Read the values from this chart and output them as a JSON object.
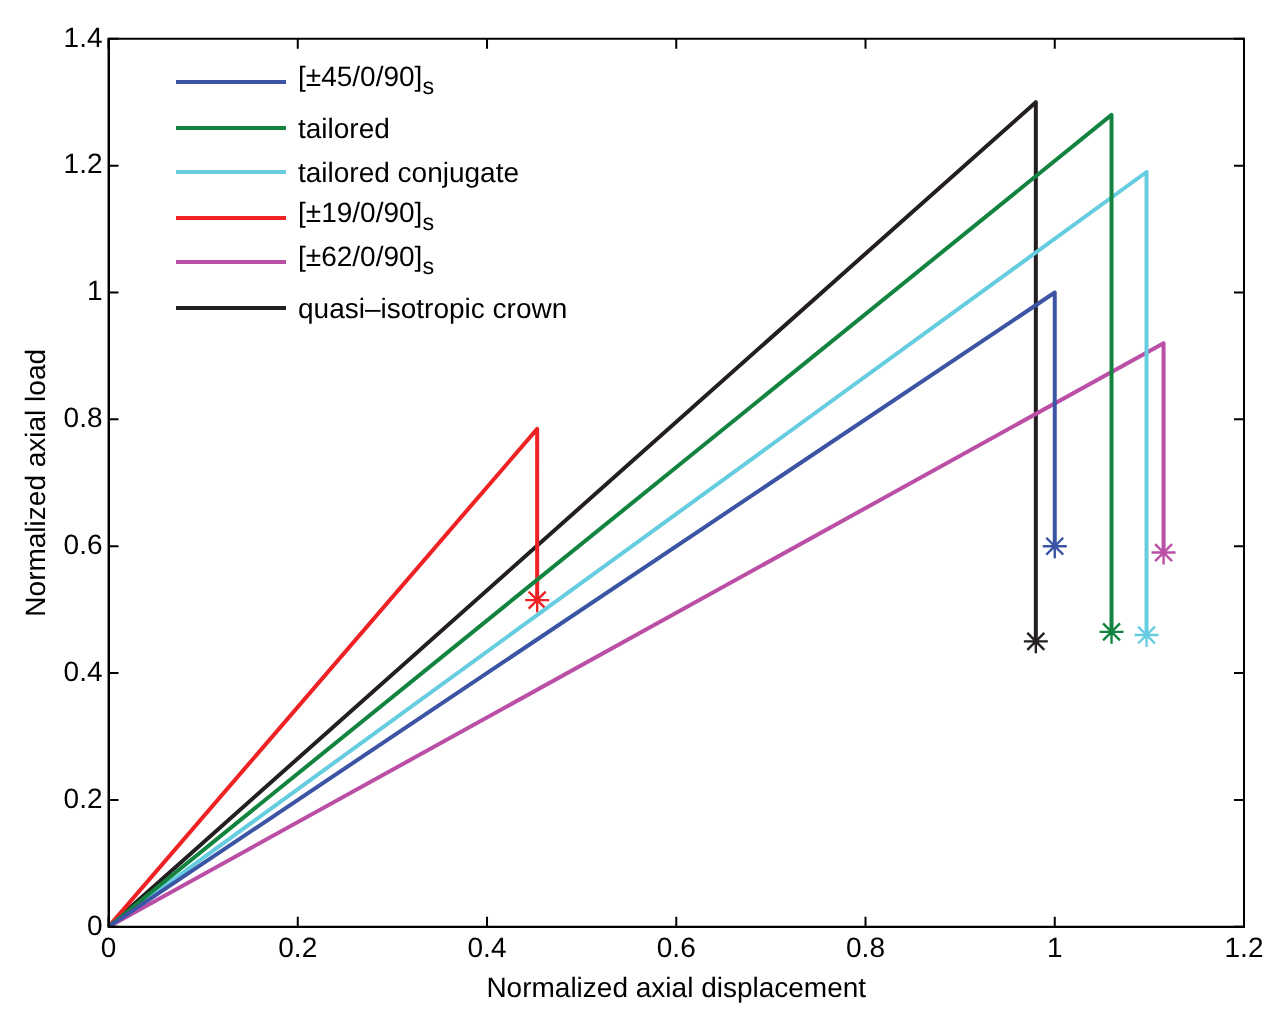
{
  "chart_data": {
    "type": "line",
    "xlabel": "Normalized axial displacement",
    "ylabel": "Normalized axial load",
    "xlim": [
      0,
      1.2
    ],
    "xticks": [
      0,
      0.2,
      0.4,
      0.6,
      0.8,
      1,
      1.2
    ],
    "ylim": [
      0,
      1.4
    ],
    "yticks": [
      0,
      0.2,
      0.4,
      0.6,
      0.8,
      1,
      1.2,
      1.4
    ],
    "grid": false,
    "legend": "top left",
    "line_style": "solid",
    "series": [
      {
        "name": "[±45/0/90]$_{s}$",
        "color": "#3b54a4",
        "x": [
          0,
          1.0,
          1.0
        ],
        "values": [
          0,
          1.0,
          0.6
        ]
      },
      {
        "name": "tailored",
        "color": "#13843f",
        "x": [
          0,
          1.06,
          1.06
        ],
        "values": [
          0,
          1.28,
          0.465
        ]
      },
      {
        "name": "tailored conjugate",
        "color": "#66cde0",
        "x": [
          0,
          1.097,
          1.097
        ],
        "values": [
          0,
          1.19,
          0.46
        ]
      },
      {
        "name": "[±19/0/90]$_{s}$",
        "color": "#ee2224",
        "x": [
          0,
          0.453,
          0.453
        ],
        "values": [
          0,
          0.785,
          0.515
        ]
      },
      {
        "name": "[±62/0/90]$_{s}$",
        "color": "#bb4fa6",
        "x": [
          0,
          1.115,
          1.115
        ],
        "values": [
          0,
          0.92,
          0.59
        ]
      },
      {
        "name": "quasi–isotropic crown",
        "color": "#231f20",
        "x": [
          0,
          0.98,
          0.98
        ],
        "values": [
          0,
          1.3,
          0.45
        ]
      },
      {
        "type": "scatter",
        "marker": "cross",
        "color": "#3b54a4",
        "x": [
          1.0
        ],
        "values": [
          0.6
        ]
      },
      {
        "type": "scatter",
        "marker": "cross",
        "color": "#13843f",
        "x": [
          1.06
        ],
        "values": [
          0.465
        ]
      },
      {
        "type": "scatter",
        "marker": "cross",
        "color": "#66cde0",
        "x": [
          1.097
        ],
        "values": [
          0.46
        ]
      },
      {
        "type": "scatter",
        "marker": "cross",
        "color": "#ee2224",
        "x": [
          0.453
        ],
        "values": [
          0.515
        ]
      },
      {
        "type": "scatter",
        "marker": "cross",
        "color": "#bb4fa6",
        "x": [
          1.115
        ],
        "values": [
          0.59
        ]
      },
      {
        "type": "scatter",
        "marker": "cross",
        "color": "#231f20",
        "x": [
          0.98
        ],
        "values": [
          0.45
        ]
      }
    ]
  }
}
